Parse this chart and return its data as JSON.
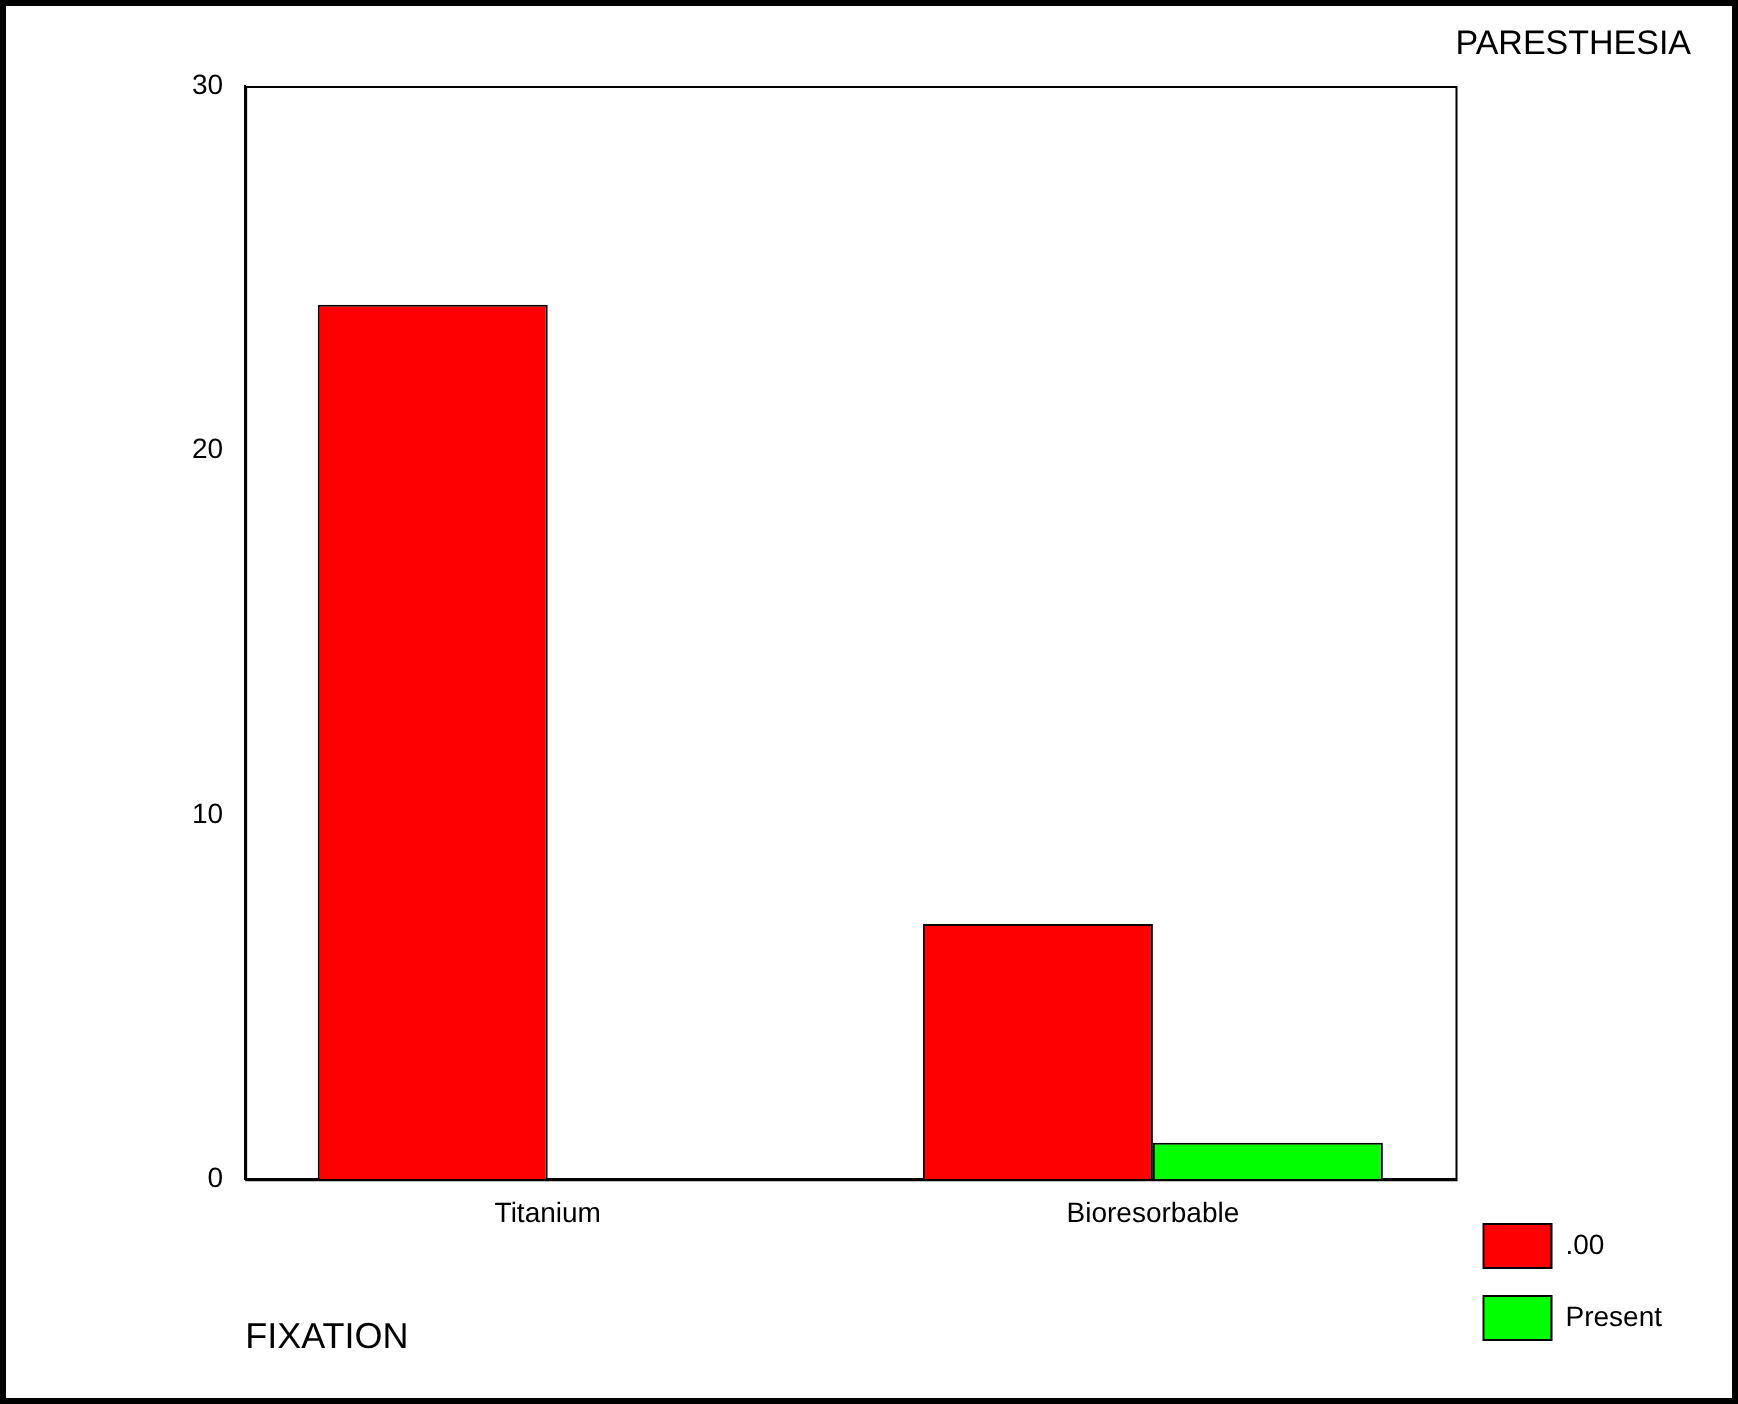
{
  "chart_data": {
    "type": "bar",
    "xlabel": "FIXATION",
    "legend_title": "PARESTHESIA",
    "categories": [
      "Titanium",
      "Bioresorbable"
    ],
    "series": [
      {
        "name": ".00",
        "color": "#ff0000",
        "values": [
          24,
          7
        ]
      },
      {
        "name": "Present",
        "color": "#00ff00",
        "values": [
          0,
          1
        ]
      }
    ],
    "ylim": [
      0,
      30
    ],
    "yticks": [
      0,
      10,
      20,
      30
    ],
    "grid": false,
    "legend": "right"
  }
}
